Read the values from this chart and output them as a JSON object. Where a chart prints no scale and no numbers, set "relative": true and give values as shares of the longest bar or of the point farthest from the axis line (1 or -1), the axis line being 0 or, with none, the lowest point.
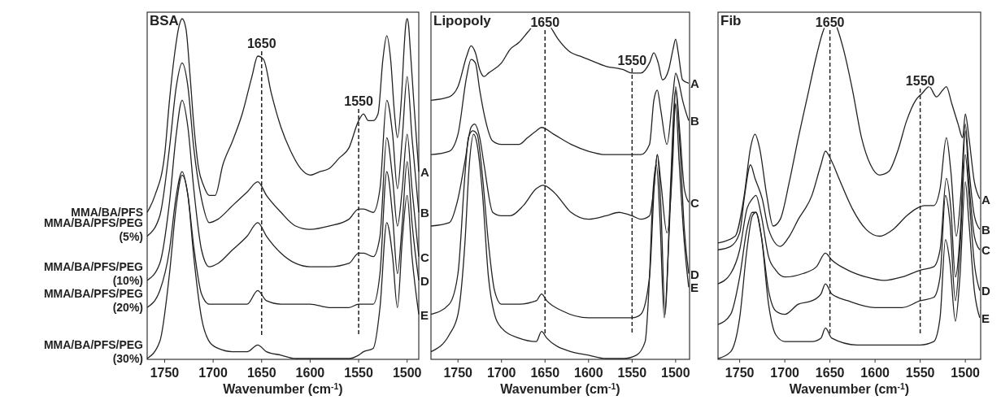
{
  "chart_data": [
    {
      "type": "line",
      "title": "BSA",
      "xlabel": "Wavenumber (cm$^{-1}$)",
      "relative": true,
      "xlim": [
        1768,
        1488
      ],
      "xticks": [
        1750,
        1700,
        1650,
        1600,
        1550,
        1500
      ],
      "ref_lines": [
        {
          "axis": "x",
          "value": 1650,
          "label": "1650",
          "line_style": "dashed"
        },
        {
          "axis": "x",
          "value": 1550,
          "label": "1550",
          "line_style": "dashed"
        }
      ],
      "annotations": [
        "MMA/BA/PFS",
        "MMA/BA/PFS/PEG (5%)",
        "MMA/BA/PFS/PEG (10%)",
        "MMA/BA/PFS/PEG (20%)",
        "MMA/BA/PFS/PEG (30%)"
      ],
      "series": [
        {
          "name": "A",
          "color": "#222222",
          "x": [
            1768,
            1760,
            1750,
            1745,
            1740,
            1735,
            1732,
            1728,
            1724,
            1720,
            1715,
            1710,
            1704,
            1698,
            1690,
            1680,
            1670,
            1660,
            1654,
            1648,
            1640,
            1630,
            1620,
            1610,
            1600,
            1590,
            1580,
            1570,
            1560,
            1550,
            1545,
            1540,
            1535,
            1530,
            1525,
            1521,
            1517,
            1513,
            1510,
            1506,
            1503,
            1501.5,
            1500,
            1498.5,
            1497,
            1493,
            1488
          ],
          "values": [
            0.43,
            0.48,
            0.6,
            0.76,
            0.89,
            0.98,
            1.0,
            0.97,
            0.84,
            0.69,
            0.56,
            0.51,
            0.48,
            0.48,
            0.57,
            0.64,
            0.72,
            0.83,
            0.89,
            0.88,
            0.78,
            0.68,
            0.61,
            0.56,
            0.54,
            0.55,
            0.56,
            0.59,
            0.62,
            0.7,
            0.72,
            0.7,
            0.7,
            0.72,
            0.88,
            0.95,
            0.88,
            0.72,
            0.65,
            0.76,
            0.92,
            0.98,
            1.0,
            0.98,
            0.92,
            0.75,
            0.55
          ]
        },
        {
          "name": "B",
          "color": "#222222",
          "x": [
            1768,
            1755,
            1745,
            1738,
            1732,
            1726,
            1720,
            1712,
            1704,
            1695,
            1680,
            1665,
            1654,
            1645,
            1630,
            1615,
            1600,
            1580,
            1560,
            1550,
            1545,
            1535,
            1528,
            1521,
            1515,
            1510,
            1505,
            1500,
            1495,
            1488
          ],
          "values": [
            0.36,
            0.42,
            0.62,
            0.8,
            0.87,
            0.8,
            0.62,
            0.47,
            0.4,
            0.41,
            0.45,
            0.49,
            0.52,
            0.48,
            0.43,
            0.39,
            0.38,
            0.39,
            0.41,
            0.44,
            0.44,
            0.43,
            0.5,
            0.76,
            0.66,
            0.5,
            0.65,
            0.83,
            0.65,
            0.43
          ]
        },
        {
          "name": "C",
          "color": "#222222",
          "x": [
            1768,
            1755,
            1745,
            1738,
            1732,
            1726,
            1720,
            1712,
            1704,
            1695,
            1680,
            1665,
            1654,
            1645,
            1630,
            1615,
            1600,
            1580,
            1560,
            1550,
            1545,
            1535,
            1528,
            1521,
            1515,
            1510,
            1505,
            1500,
            1495,
            1488
          ],
          "values": [
            0.23,
            0.28,
            0.46,
            0.66,
            0.76,
            0.68,
            0.5,
            0.32,
            0.27,
            0.28,
            0.32,
            0.36,
            0.4,
            0.36,
            0.31,
            0.28,
            0.27,
            0.27,
            0.28,
            0.31,
            0.31,
            0.3,
            0.36,
            0.65,
            0.53,
            0.39,
            0.5,
            0.66,
            0.5,
            0.3
          ]
        },
        {
          "name": "D",
          "color": "#222222",
          "x": [
            1768,
            1755,
            1745,
            1738,
            1732,
            1726,
            1720,
            1712,
            1704,
            1695,
            1680,
            1665,
            1654,
            1645,
            1630,
            1615,
            1600,
            1580,
            1560,
            1550,
            1545,
            1535,
            1528,
            1521,
            1515,
            1510,
            1505,
            1500,
            1495,
            1488
          ],
          "values": [
            0.15,
            0.2,
            0.32,
            0.48,
            0.55,
            0.48,
            0.33,
            0.19,
            0.16,
            0.16,
            0.16,
            0.16,
            0.2,
            0.17,
            0.16,
            0.16,
            0.16,
            0.15,
            0.15,
            0.16,
            0.16,
            0.16,
            0.25,
            0.55,
            0.42,
            0.25,
            0.4,
            0.58,
            0.4,
            0.23
          ]
        },
        {
          "name": "E",
          "color": "#222222",
          "x": [
            1768,
            1755,
            1745,
            1738,
            1732,
            1726,
            1720,
            1712,
            1704,
            1695,
            1680,
            1665,
            1654,
            1645,
            1630,
            1615,
            1600,
            1580,
            1560,
            1550,
            1545,
            1535,
            1528,
            1521,
            1515,
            1510,
            1505,
            1500,
            1495,
            1488
          ],
          "values": [
            0.0,
            0.05,
            0.25,
            0.45,
            0.54,
            0.48,
            0.3,
            0.12,
            0.05,
            0.03,
            0.02,
            0.02,
            0.04,
            0.02,
            0.01,
            0.0,
            0.0,
            0.0,
            0.0,
            0.01,
            0.02,
            0.03,
            0.15,
            0.4,
            0.3,
            0.15,
            0.35,
            0.48,
            0.3,
            0.13
          ]
        }
      ]
    },
    {
      "type": "line",
      "title": "Lipopoly",
      "xlabel": "Wavenumber (cm$^{-1}$)",
      "relative": true,
      "xlim": [
        1781,
        1484
      ],
      "xticks": [
        1750,
        1700,
        1650,
        1600,
        1550,
        1500
      ],
      "ref_lines": [
        {
          "axis": "x",
          "value": 1650,
          "label": "1650",
          "line_style": "dashed"
        },
        {
          "axis": "x",
          "value": 1550,
          "label": "1550",
          "line_style": "dashed"
        }
      ],
      "series": [
        {
          "name": "A",
          "color": "#222222",
          "x": [
            1781,
            1760,
            1750,
            1740,
            1735,
            1730,
            1725,
            1720,
            1715,
            1700,
            1690,
            1680,
            1670,
            1660,
            1654,
            1645,
            1635,
            1620,
            1610,
            1600,
            1580,
            1560,
            1550,
            1540,
            1530,
            1525,
            1520,
            1515,
            1508,
            1503,
            1500,
            1497,
            1492,
            1485
          ],
          "values": [
            0.76,
            0.77,
            0.8,
            0.89,
            0.92,
            0.9,
            0.85,
            0.83,
            0.84,
            0.87,
            0.91,
            0.93,
            0.96,
            0.99,
            1.0,
            0.98,
            0.94,
            0.9,
            0.89,
            0.88,
            0.86,
            0.85,
            0.84,
            0.84,
            0.87,
            0.9,
            0.87,
            0.82,
            0.85,
            0.91,
            0.94,
            0.9,
            0.82,
            0.81
          ]
        },
        {
          "name": "B",
          "color": "#222222",
          "x": [
            1781,
            1760,
            1750,
            1740,
            1735,
            1730,
            1725,
            1720,
            1710,
            1700,
            1680,
            1670,
            1660,
            1654,
            1640,
            1620,
            1600,
            1580,
            1560,
            1540,
            1530,
            1525,
            1521,
            1517,
            1510,
            1503,
            1500,
            1497,
            1492,
            1485
          ],
          "values": [
            0.6,
            0.61,
            0.66,
            0.83,
            0.88,
            0.87,
            0.79,
            0.72,
            0.64,
            0.63,
            0.63,
            0.65,
            0.67,
            0.68,
            0.66,
            0.63,
            0.61,
            0.6,
            0.6,
            0.6,
            0.63,
            0.76,
            0.79,
            0.73,
            0.63,
            0.78,
            0.84,
            0.82,
            0.76,
            0.7
          ]
        },
        {
          "name": "C",
          "color": "#222222",
          "x": [
            1781,
            1760,
            1750,
            1742,
            1735,
            1731,
            1725,
            1720,
            1710,
            1700,
            1690,
            1675,
            1660,
            1652,
            1640,
            1620,
            1600,
            1580,
            1565,
            1550,
            1540,
            1530,
            1525,
            1521,
            1517,
            1510,
            1503,
            1500,
            1495,
            1490,
            1485
          ],
          "values": [
            0.39,
            0.4,
            0.47,
            0.58,
            0.68,
            0.69,
            0.65,
            0.57,
            0.43,
            0.42,
            0.42,
            0.45,
            0.5,
            0.51,
            0.49,
            0.43,
            0.41,
            0.42,
            0.43,
            0.42,
            0.41,
            0.42,
            0.5,
            0.6,
            0.52,
            0.37,
            0.6,
            0.8,
            0.66,
            0.5,
            0.46
          ]
        },
        {
          "name": "D",
          "color": "#222222",
          "x": [
            1781,
            1760,
            1750,
            1742,
            1738,
            1733,
            1728,
            1722,
            1715,
            1708,
            1700,
            1680,
            1660,
            1654,
            1648,
            1630,
            1600,
            1570,
            1550,
            1540,
            1530,
            1524,
            1521,
            1517,
            1512,
            1506,
            1500,
            1495,
            1490,
            1485
          ],
          "values": [
            0.13,
            0.16,
            0.25,
            0.54,
            0.65,
            0.67,
            0.66,
            0.54,
            0.34,
            0.2,
            0.16,
            0.16,
            0.17,
            0.19,
            0.17,
            0.14,
            0.12,
            0.12,
            0.12,
            0.13,
            0.24,
            0.53,
            0.6,
            0.45,
            0.13,
            0.5,
            0.79,
            0.62,
            0.38,
            0.25
          ]
        },
        {
          "name": "E",
          "color": "#222222",
          "x": [
            1781,
            1760,
            1750,
            1742,
            1737,
            1732,
            1728,
            1722,
            1715,
            1708,
            1700,
            1680,
            1660,
            1654,
            1648,
            1620,
            1600,
            1580,
            1560,
            1545,
            1535,
            1530,
            1526,
            1522,
            1518,
            1513,
            1508,
            1502,
            1500,
            1496,
            1490,
            1485
          ],
          "values": [
            0.02,
            0.07,
            0.13,
            0.34,
            0.57,
            0.66,
            0.63,
            0.49,
            0.24,
            0.13,
            0.09,
            0.06,
            0.05,
            0.08,
            0.06,
            0.02,
            0.01,
            0.0,
            0.0,
            0.01,
            0.05,
            0.24,
            0.49,
            0.57,
            0.41,
            0.12,
            0.34,
            0.69,
            0.75,
            0.58,
            0.34,
            0.21
          ]
        }
      ]
    },
    {
      "type": "line",
      "title": "Fib",
      "xlabel": "Wavenumber (cm$^{-1}$)",
      "relative": true,
      "xlim": [
        1774,
        1483
      ],
      "xticks": [
        1750,
        1700,
        1650,
        1600,
        1550,
        1500
      ],
      "ref_lines": [
        {
          "axis": "x",
          "value": 1650,
          "label": "1650",
          "line_style": "dashed"
        },
        {
          "axis": "x",
          "value": 1550,
          "label": "1550",
          "line_style": "dashed"
        }
      ],
      "series": [
        {
          "name": "A",
          "color": "#222222",
          "x": [
            1774,
            1755,
            1745,
            1738,
            1733,
            1728,
            1720,
            1713,
            1705,
            1695,
            1685,
            1675,
            1665,
            1658,
            1650,
            1645,
            1635,
            1625,
            1615,
            1605,
            1595,
            1585,
            1575,
            1565,
            1555,
            1548,
            1540,
            1532,
            1525,
            1521,
            1515,
            1508,
            1503,
            1500,
            1496,
            1490,
            1484
          ],
          "values": [
            0.34,
            0.36,
            0.48,
            0.62,
            0.66,
            0.62,
            0.48,
            0.39,
            0.41,
            0.52,
            0.65,
            0.77,
            0.89,
            0.96,
            1.0,
            0.99,
            0.91,
            0.79,
            0.65,
            0.57,
            0.54,
            0.55,
            0.61,
            0.7,
            0.76,
            0.78,
            0.8,
            0.77,
            0.79,
            0.8,
            0.75,
            0.69,
            0.65,
            0.72,
            0.65,
            0.52,
            0.47
          ]
        },
        {
          "name": "B",
          "color": "#222222",
          "x": [
            1774,
            1760,
            1750,
            1745,
            1738,
            1733,
            1725,
            1718,
            1705,
            1695,
            1685,
            1670,
            1660,
            1655,
            1648,
            1640,
            1625,
            1610,
            1595,
            1580,
            1565,
            1555,
            1545,
            1535,
            1528,
            1521,
            1516,
            1510,
            1505,
            1500,
            1496,
            1490,
            1484
          ],
          "values": [
            0.32,
            0.33,
            0.37,
            0.47,
            0.57,
            0.53,
            0.47,
            0.38,
            0.33,
            0.36,
            0.41,
            0.48,
            0.57,
            0.61,
            0.58,
            0.53,
            0.44,
            0.38,
            0.36,
            0.38,
            0.42,
            0.44,
            0.45,
            0.45,
            0.5,
            0.65,
            0.55,
            0.36,
            0.48,
            0.69,
            0.56,
            0.42,
            0.38
          ]
        },
        {
          "name": "C",
          "color": "#222222",
          "x": [
            1774,
            1760,
            1750,
            1742,
            1736,
            1732,
            1726,
            1718,
            1710,
            1700,
            1680,
            1665,
            1655,
            1648,
            1630,
            1610,
            1590,
            1570,
            1550,
            1535,
            1528,
            1521,
            1516,
            1511,
            1505,
            1500,
            1496,
            1490,
            1484
          ],
          "values": [
            0.22,
            0.25,
            0.32,
            0.44,
            0.47,
            0.48,
            0.42,
            0.3,
            0.26,
            0.24,
            0.25,
            0.27,
            0.31,
            0.29,
            0.26,
            0.24,
            0.23,
            0.24,
            0.26,
            0.27,
            0.32,
            0.53,
            0.44,
            0.24,
            0.4,
            0.67,
            0.52,
            0.36,
            0.32
          ]
        },
        {
          "name": "D",
          "color": "#222222",
          "x": [
            1774,
            1760,
            1750,
            1742,
            1736,
            1732,
            1726,
            1718,
            1710,
            1700,
            1685,
            1670,
            1660,
            1655,
            1648,
            1630,
            1600,
            1570,
            1550,
            1535,
            1528,
            1522,
            1517,
            1511,
            1506,
            1500,
            1496,
            1490,
            1484
          ],
          "values": [
            0.1,
            0.13,
            0.24,
            0.38,
            0.43,
            0.43,
            0.36,
            0.2,
            0.14,
            0.13,
            0.16,
            0.17,
            0.19,
            0.22,
            0.19,
            0.17,
            0.15,
            0.15,
            0.17,
            0.18,
            0.24,
            0.48,
            0.4,
            0.17,
            0.32,
            0.6,
            0.48,
            0.28,
            0.2
          ]
        },
        {
          "name": "E",
          "color": "#222222",
          "x": [
            1774,
            1760,
            1750,
            1742,
            1736,
            1732,
            1726,
            1718,
            1710,
            1700,
            1670,
            1660,
            1655,
            1648,
            1620,
            1600,
            1570,
            1550,
            1535,
            1528,
            1522,
            1517,
            1511,
            1506,
            1500,
            1496,
            1490,
            1484
          ],
          "values": [
            0.0,
            0.02,
            0.12,
            0.32,
            0.42,
            0.43,
            0.36,
            0.16,
            0.07,
            0.05,
            0.05,
            0.06,
            0.09,
            0.06,
            0.04,
            0.04,
            0.04,
            0.04,
            0.05,
            0.12,
            0.35,
            0.28,
            0.11,
            0.24,
            0.52,
            0.4,
            0.2,
            0.12
          ]
        }
      ]
    }
  ]
}
